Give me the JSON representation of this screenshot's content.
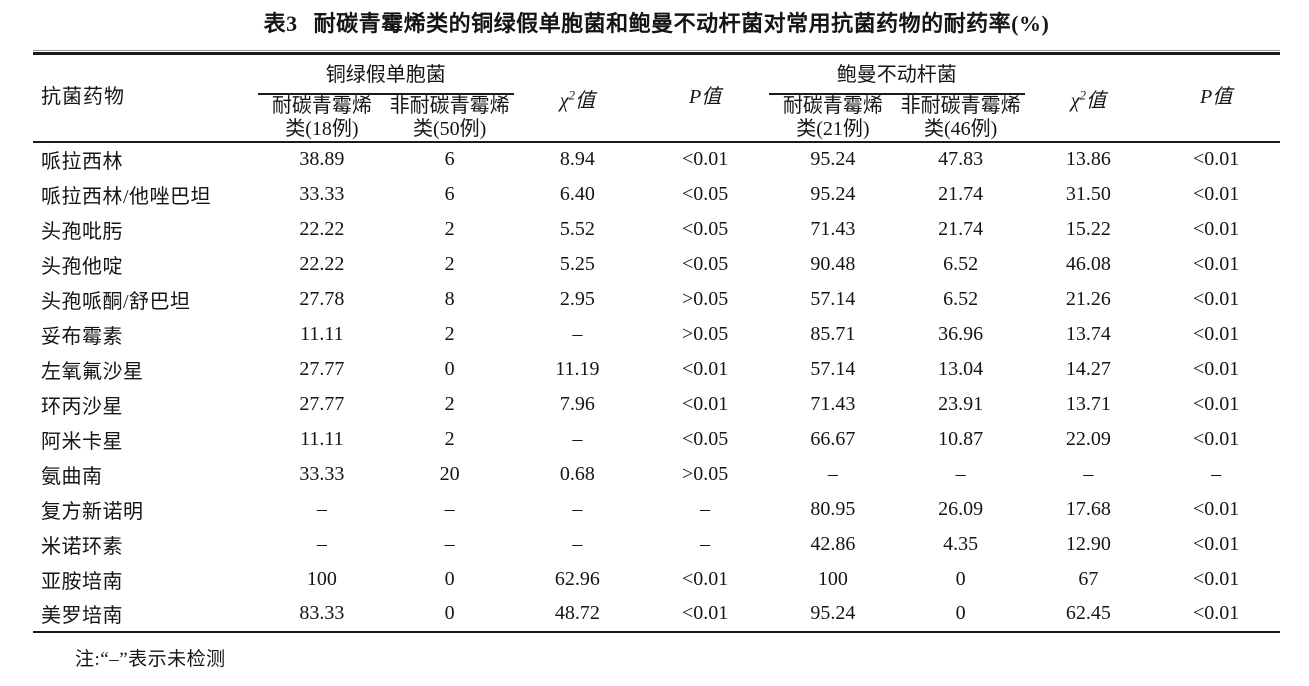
{
  "title_label": "表3",
  "title_text": "耐碳青霉烯类的铜绿假单胞菌和鲍曼不动杆菌对常用抗菌药物的耐药率(%)",
  "table": {
    "drug_col_header": "抗菌药物",
    "groups": [
      {
        "name": "铜绿假单胞菌",
        "sub1_line1": "耐碳青霉烯",
        "sub1_line2": "类(18例)",
        "sub2_line1": "非耐碳青霉烯",
        "sub2_line2": "类(50例)"
      },
      {
        "name": "鲍曼不动杆菌",
        "sub1_line1": "耐碳青霉烯",
        "sub1_line2": "类(21例)",
        "sub2_line1": "非耐碳青霉烯",
        "sub2_line2": "类(46例)"
      }
    ],
    "chi_header": {
      "symbol": "χ",
      "sup": "2",
      "suffix": "值"
    },
    "p_header": {
      "symbol": "P",
      "suffix": "值"
    },
    "rows": [
      {
        "drug": "哌拉西林",
        "cells": [
          "38.89",
          "6",
          "8.94",
          "<0.01",
          "95.24",
          "47.83",
          "13.86",
          "<0.01"
        ]
      },
      {
        "drug": "哌拉西林/他唑巴坦",
        "cells": [
          "33.33",
          "6",
          "6.40",
          "<0.05",
          "95.24",
          "21.74",
          "31.50",
          "<0.01"
        ]
      },
      {
        "drug": "头孢吡肟",
        "cells": [
          "22.22",
          "2",
          "5.52",
          "<0.05",
          "71.43",
          "21.74",
          "15.22",
          "<0.01"
        ]
      },
      {
        "drug": "头孢他啶",
        "cells": [
          "22.22",
          "2",
          "5.25",
          "<0.05",
          "90.48",
          "6.52",
          "46.08",
          "<0.01"
        ]
      },
      {
        "drug": "头孢哌酮/舒巴坦",
        "cells": [
          "27.78",
          "8",
          "2.95",
          ">0.05",
          "57.14",
          "6.52",
          "21.26",
          "<0.01"
        ]
      },
      {
        "drug": "妥布霉素",
        "cells": [
          "11.11",
          "2",
          "–",
          ">0.05",
          "85.71",
          "36.96",
          "13.74",
          "<0.01"
        ]
      },
      {
        "drug": "左氧氟沙星",
        "cells": [
          "27.77",
          "0",
          "11.19",
          "<0.01",
          "57.14",
          "13.04",
          "14.27",
          "<0.01"
        ]
      },
      {
        "drug": "环丙沙星",
        "cells": [
          "27.77",
          "2",
          "7.96",
          "<0.01",
          "71.43",
          "23.91",
          "13.71",
          "<0.01"
        ]
      },
      {
        "drug": "阿米卡星",
        "cells": [
          "11.11",
          "2",
          "–",
          "<0.05",
          "66.67",
          "10.87",
          "22.09",
          "<0.01"
        ]
      },
      {
        "drug": "氨曲南",
        "cells": [
          "33.33",
          "20",
          "0.68",
          ">0.05",
          "–",
          "–",
          "–",
          "–"
        ]
      },
      {
        "drug": "复方新诺明",
        "cells": [
          "–",
          "–",
          "–",
          "–",
          "80.95",
          "26.09",
          "17.68",
          "<0.01"
        ]
      },
      {
        "drug": "米诺环素",
        "cells": [
          "–",
          "–",
          "–",
          "–",
          "42.86",
          "4.35",
          "12.90",
          "<0.01"
        ]
      },
      {
        "drug": "亚胺培南",
        "cells": [
          "100",
          "0",
          "62.96",
          "<0.01",
          "100",
          "0",
          "67",
          "<0.01"
        ]
      },
      {
        "drug": "美罗培南",
        "cells": [
          "83.33",
          "0",
          "48.72",
          "<0.01",
          "95.24",
          "0",
          "62.45",
          "<0.01"
        ]
      }
    ],
    "note": "注:“–”表示未检测"
  }
}
